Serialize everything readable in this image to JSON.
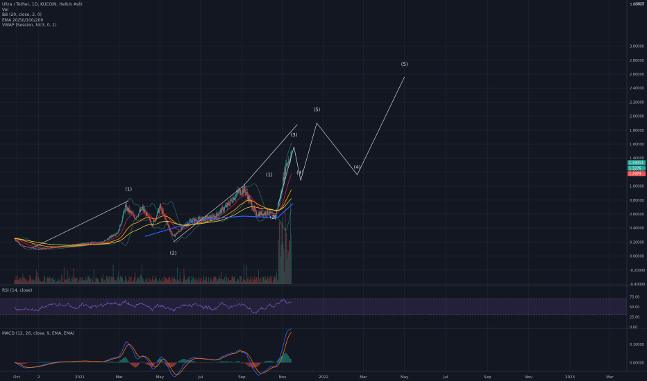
{
  "legend": {
    "symbol": "Ultra / Tether, 1D, KUCOIN, Heikin Ashi",
    "vol": "Vol",
    "bb": "BB (20, close, 2, 0)",
    "ema": "EMA 20/50/100/200",
    "vwap": "VWAP (Session, hlc3, 0, 1)"
  },
  "currency": "USDT",
  "rsi_label": "RSI (14, close)",
  "macd_label": "MACD (12, 26, close, 9, EMA, EMA)",
  "colors": {
    "background": "#131722",
    "grid": "#1e222d",
    "up": "#26a69a",
    "down": "#ef5350",
    "annotation": "#d1d4dc",
    "ema_orange": "#ff9800",
    "ema_blue": "#2962ff",
    "bb": "#4db6ac",
    "rsi": "#7e57c2",
    "macd": "#2962ff",
    "signal": "#ff6d00"
  },
  "chart_data": [
    {
      "type": "candlestick",
      "ylabels": [
        "3.00000",
        "2.80000",
        "2.60000",
        "2.40000",
        "2.20000",
        "2.00000",
        "1.80000",
        "1.60000",
        "1.40000",
        "1.20000",
        "1.00000",
        "0.80000",
        "0.60000",
        "0.40000",
        "0.20000",
        "0.00000",
        "-0.20000",
        "-0.40000"
      ],
      "ytop_label": "3.60000",
      "ylim": [
        -0.4,
        3.6
      ],
      "xlabels": [
        "Oct",
        "2",
        "2021",
        "Mar",
        "May",
        "Jul",
        "Sep",
        "Nov",
        "2022",
        "Mar",
        "May",
        "Jul",
        "Sep",
        "Nov",
        "2023",
        "Mar"
      ],
      "price_badges": [
        "1.33013",
        "1.3276",
        "1.2979"
      ],
      "wave_labels": [
        {
          "text": "(1)",
          "date": "2021-03-15",
          "price": 0.93
        },
        {
          "text": "(2)",
          "date": "2021-05-21",
          "price": 0.02
        },
        {
          "text": "(1)",
          "date": "2021-10-12",
          "price": 1.14
        },
        {
          "text": "(2)",
          "date": "2021-10-18",
          "price": 0.53
        },
        {
          "text": "(3)",
          "date": "2021-11-18",
          "price": 1.71
        },
        {
          "text": "(4)",
          "date": "2021-11-27",
          "price": 1.17
        },
        {
          "text": "(5)",
          "date": "2021-12-22",
          "price": 2.07
        },
        {
          "text": "(4)",
          "date": "2022-02-20",
          "price": 1.25
        },
        {
          "text": "(5)",
          "date": "2022-05-01",
          "price": 2.72
        }
      ],
      "projection_path": [
        {
          "date": "2021-10-25",
          "price": 0.72
        },
        {
          "date": "2021-11-18",
          "price": 1.56
        },
        {
          "date": "2021-11-28",
          "price": 1.08
        },
        {
          "date": "2021-12-22",
          "price": 1.9
        },
        {
          "date": "2022-02-20",
          "price": 1.16
        },
        {
          "date": "2022-05-01",
          "price": 2.56
        }
      ],
      "trendlines": [
        {
          "from": {
            "date": "2020-10-25",
            "price": 0.12
          },
          "to": {
            "date": "2021-03-15",
            "price": 0.79
          }
        },
        {
          "from": {
            "date": "2021-05-21",
            "price": 0.2
          },
          "to": {
            "date": "2021-09-03",
            "price": 1.0
          }
        },
        {
          "from": {
            "date": "2021-09-03",
            "price": 1.0
          },
          "to": {
            "date": "2021-11-23",
            "price": 1.88
          }
        }
      ],
      "candle_path": [
        {
          "date": "2020-09-28",
          "price": 0.25
        },
        {
          "date": "2020-10-10",
          "price": 0.14
        },
        {
          "date": "2020-11-01",
          "price": 0.1
        },
        {
          "date": "2020-12-10",
          "price": 0.14
        },
        {
          "date": "2021-01-10",
          "price": 0.18
        },
        {
          "date": "2021-02-05",
          "price": 0.2
        },
        {
          "date": "2021-02-28",
          "price": 0.35
        },
        {
          "date": "2021-03-10",
          "price": 0.7
        },
        {
          "date": "2021-03-25",
          "price": 0.55
        },
        {
          "date": "2021-04-05",
          "price": 0.68
        },
        {
          "date": "2021-04-20",
          "price": 0.45
        },
        {
          "date": "2021-05-01",
          "price": 0.7
        },
        {
          "date": "2021-05-21",
          "price": 0.28
        },
        {
          "date": "2021-06-15",
          "price": 0.5
        },
        {
          "date": "2021-07-20",
          "price": 0.55
        },
        {
          "date": "2021-08-10",
          "price": 0.72
        },
        {
          "date": "2021-08-25",
          "price": 0.9
        },
        {
          "date": "2021-09-05",
          "price": 0.95
        },
        {
          "date": "2021-09-22",
          "price": 0.6
        },
        {
          "date": "2021-10-12",
          "price": 0.62
        },
        {
          "date": "2021-10-20",
          "price": 0.55
        },
        {
          "date": "2021-10-28",
          "price": 0.8
        },
        {
          "date": "2021-11-06",
          "price": 1.3
        },
        {
          "date": "2021-11-14",
          "price": 1.45
        }
      ]
    },
    {
      "type": "line",
      "title": "RSI (14, close)",
      "ylabels": [
        "75.00",
        "50.00",
        "25.00",
        "0.00"
      ],
      "ylim": [
        0,
        100
      ],
      "band": [
        30,
        70
      ]
    },
    {
      "type": "line",
      "title": "MACD (12, 26, close, 9, EMA, EMA)",
      "ylabels": [
        "0.10000",
        "0.00000"
      ],
      "ylim": [
        -0.04,
        0.18
      ]
    }
  ]
}
